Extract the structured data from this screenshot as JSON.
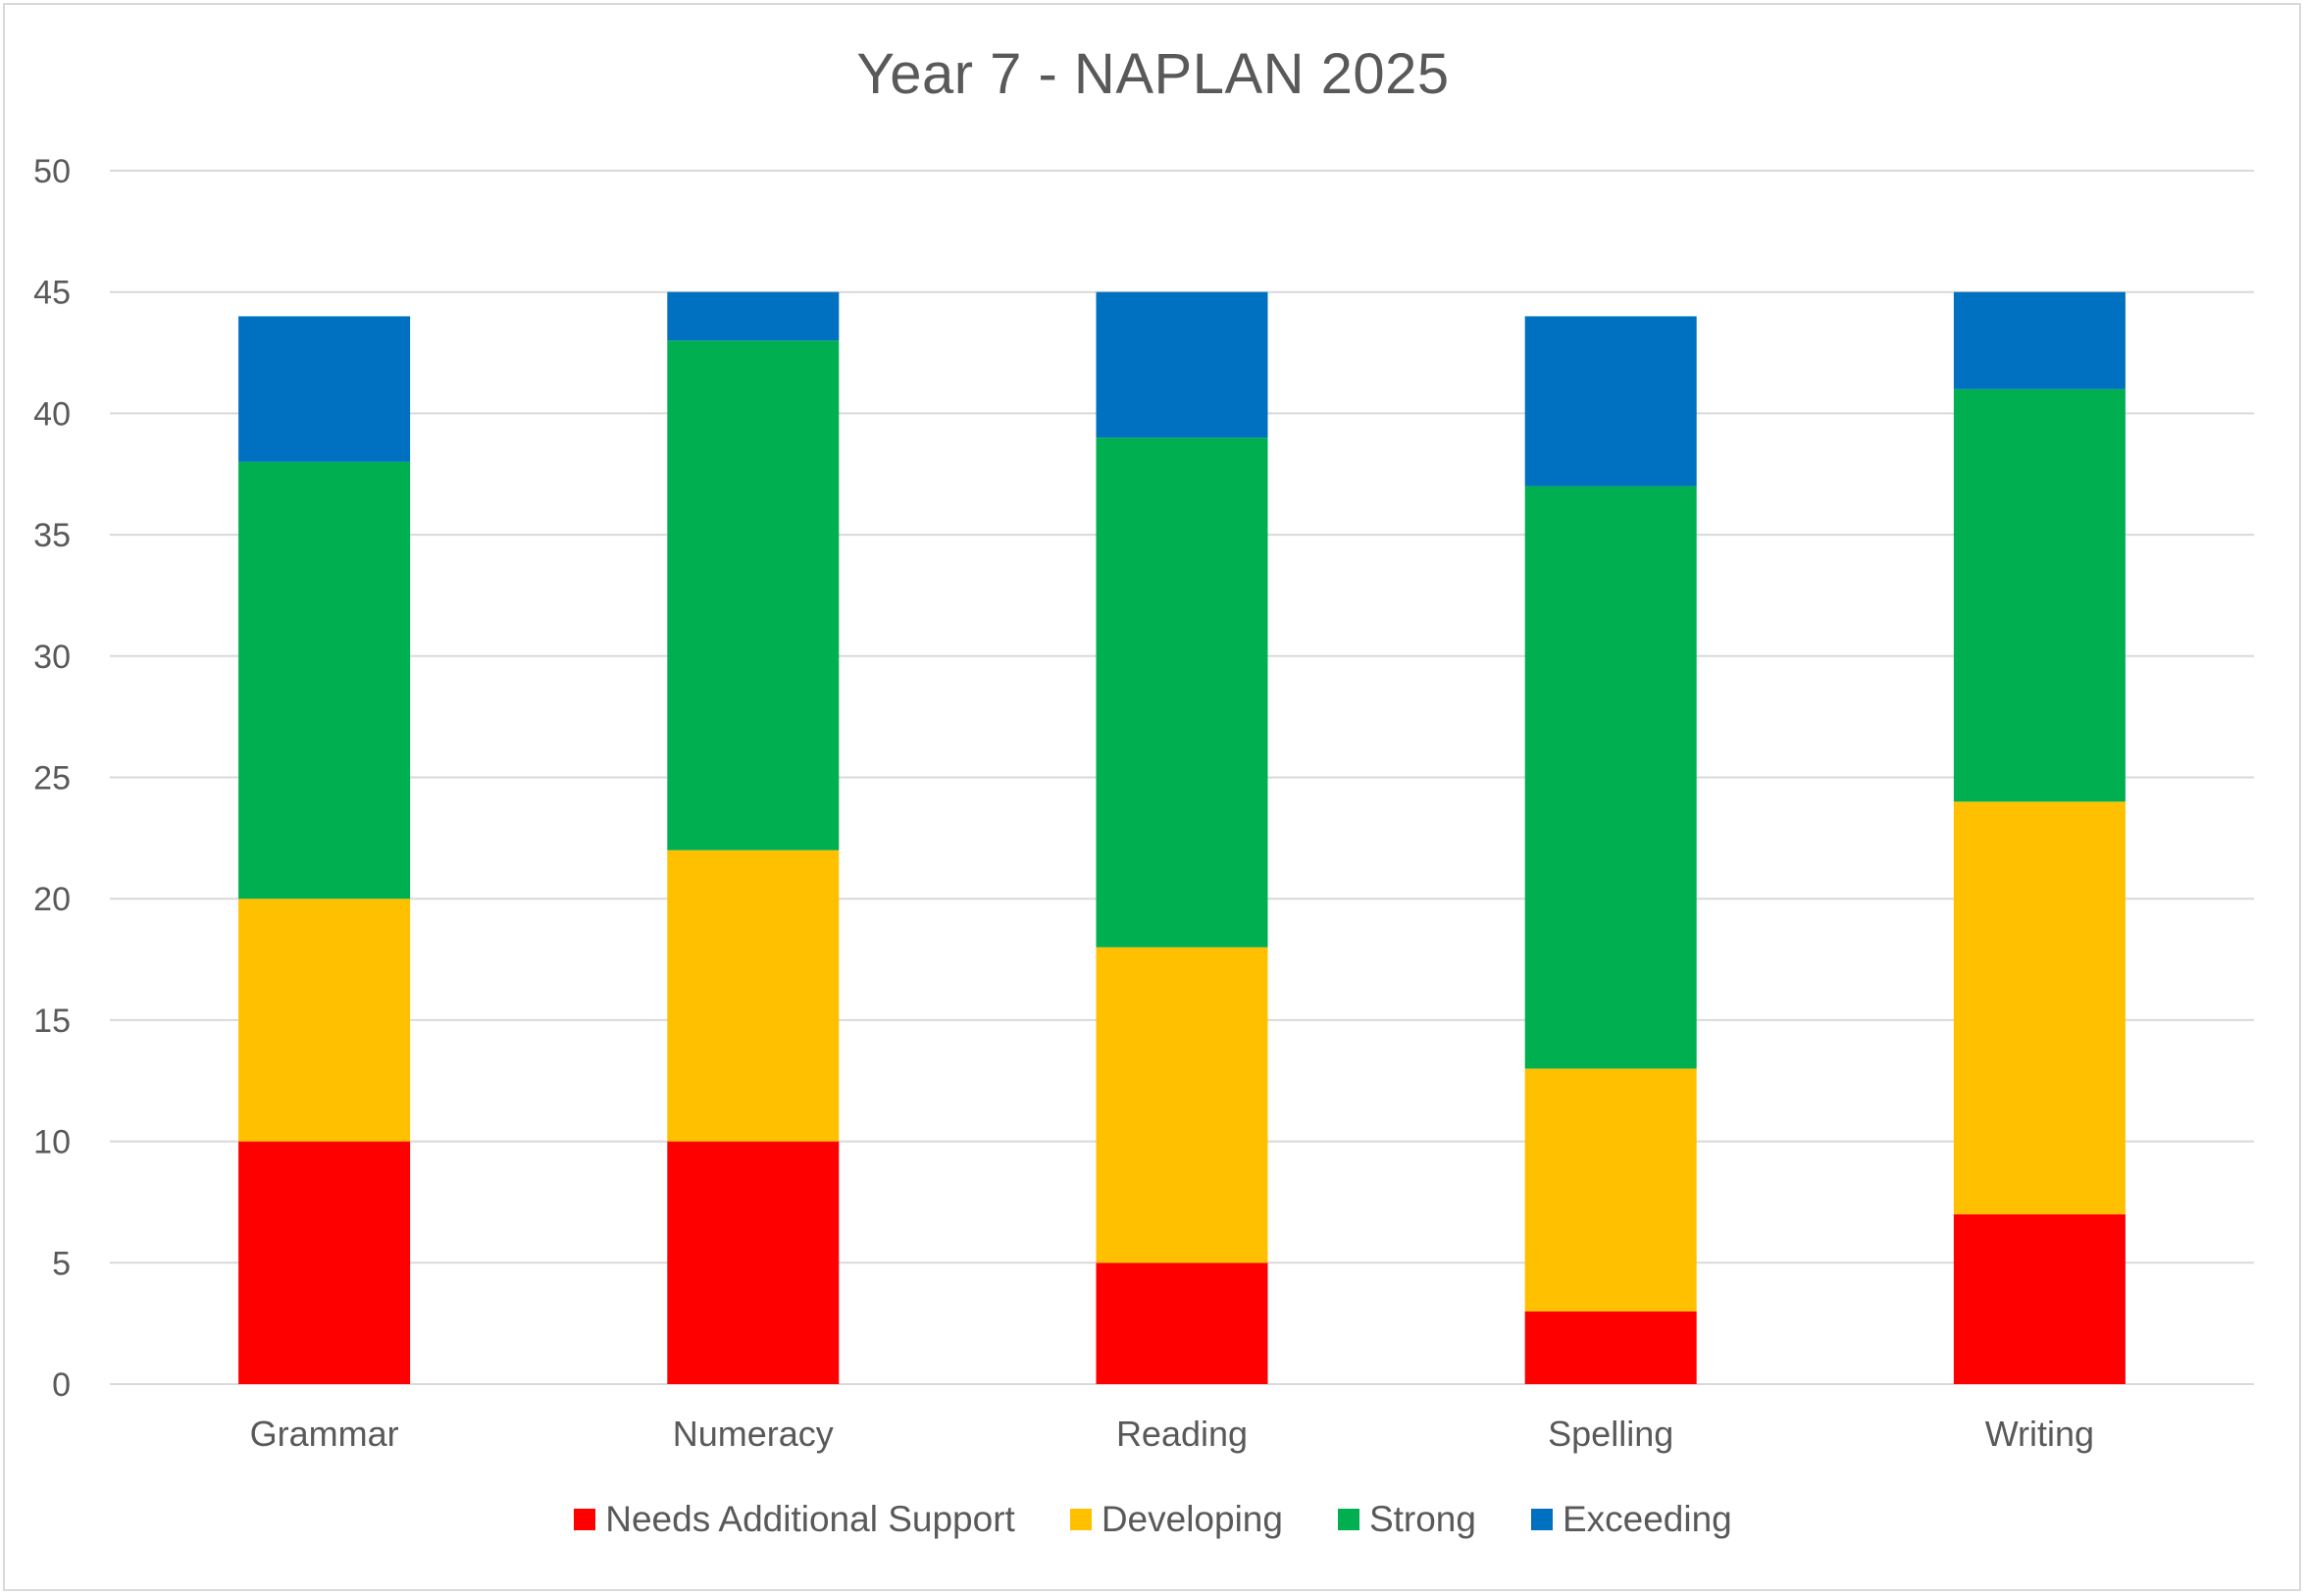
{
  "chart_data": {
    "type": "bar",
    "stacked": true,
    "title": "Year 7 - NAPLAN 2025",
    "xlabel": "",
    "ylabel": "",
    "categories": [
      "Grammar",
      "Numeracy",
      "Reading",
      "Spelling",
      "Writing"
    ],
    "ylim": [
      0,
      50
    ],
    "yticks": [
      0,
      5,
      10,
      15,
      20,
      25,
      30,
      35,
      40,
      45,
      50
    ],
    "grid": true,
    "legend_position": "bottom",
    "series": [
      {
        "name": "Needs Additional Support",
        "color": "#ff0000",
        "values": [
          10,
          10,
          5,
          3,
          7
        ]
      },
      {
        "name": "Developing",
        "color": "#ffc000",
        "values": [
          10,
          12,
          13,
          10,
          17
        ]
      },
      {
        "name": "Strong",
        "color": "#00b050",
        "values": [
          18,
          21,
          21,
          24,
          17
        ]
      },
      {
        "name": "Exceeding",
        "color": "#0070c0",
        "values": [
          6,
          2,
          6,
          7,
          4
        ]
      }
    ]
  }
}
